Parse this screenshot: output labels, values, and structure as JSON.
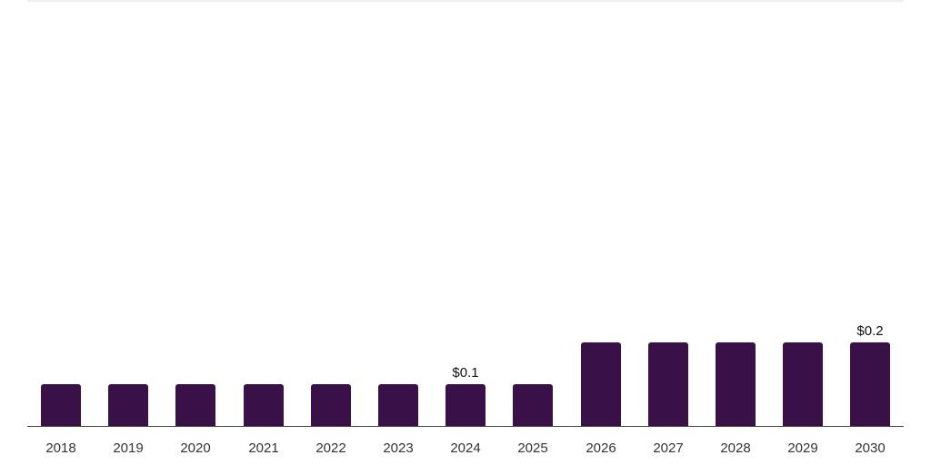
{
  "chart_data": {
    "type": "bar",
    "title": "",
    "xlabel": "",
    "ylabel": "",
    "categories": [
      "2018",
      "2019",
      "2020",
      "2021",
      "2022",
      "2023",
      "2024",
      "2025",
      "2026",
      "2027",
      "2028",
      "2029",
      "2030"
    ],
    "values": [
      0.1,
      0.1,
      0.1,
      0.1,
      0.1,
      0.1,
      0.1,
      0.1,
      0.2,
      0.2,
      0.2,
      0.2,
      0.2
    ],
    "value_prefix": "$",
    "data_labels": [
      {
        "category": "2024",
        "text": "$0.1"
      },
      {
        "category": "2030",
        "text": "$0.2"
      }
    ],
    "ylim": [
      0,
      1.0
    ],
    "grid": false,
    "legend": null,
    "bar_color": "#3a1049"
  },
  "labels": {
    "x": [
      "2018",
      "2019",
      "2020",
      "2021",
      "2022",
      "2023",
      "2024",
      "2025",
      "2026",
      "2027",
      "2028",
      "2029",
      "2030"
    ],
    "value_2024": "$0.1",
    "value_2030": "$0.2"
  }
}
